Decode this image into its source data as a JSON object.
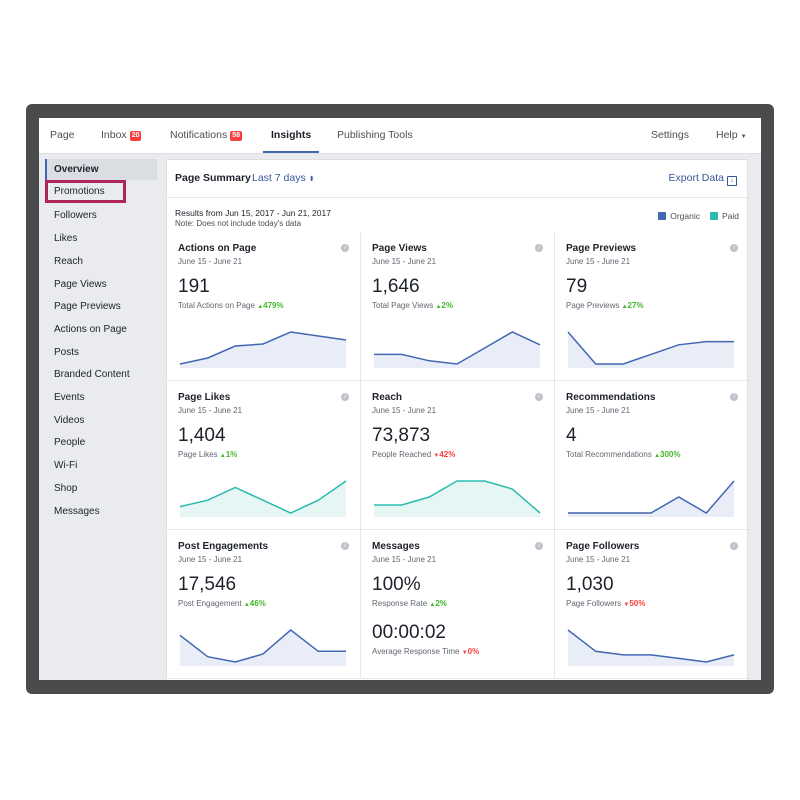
{
  "colors": {
    "accent": "#4267b2",
    "organic": "#4267b2",
    "paid": "#2bbbad",
    "up": "#42b72a",
    "down": "#fa3e3e"
  },
  "topnav": {
    "page": "Page",
    "inbox": "Inbox",
    "inbox_badge": "20",
    "notifications": "Notifications",
    "notifications_badge": "58",
    "insights": "Insights",
    "publishing_tools": "Publishing Tools",
    "settings": "Settings",
    "help": "Help"
  },
  "sidebar": {
    "items": [
      {
        "label": "Overview"
      },
      {
        "label": "Promotions"
      },
      {
        "label": "Followers"
      },
      {
        "label": "Likes"
      },
      {
        "label": "Reach"
      },
      {
        "label": "Page Views"
      },
      {
        "label": "Page Previews"
      },
      {
        "label": "Actions on Page"
      },
      {
        "label": "Posts"
      },
      {
        "label": "Branded Content"
      },
      {
        "label": "Events"
      },
      {
        "label": "Videos"
      },
      {
        "label": "People"
      },
      {
        "label": "Wi-Fi"
      },
      {
        "label": "Shop"
      },
      {
        "label": "Messages"
      }
    ]
  },
  "summary": {
    "title": "Page Summary",
    "range": "Last 7 days",
    "export": "Export Data",
    "results": "Results from Jun 15, 2017 - Jun 21, 2017",
    "note": "Note: Does not include today's data",
    "legend_organic": "Organic",
    "legend_paid": "Paid"
  },
  "cards": [
    {
      "title": "Actions on Page",
      "range": "June 15 - June 21",
      "value": "191",
      "sub": "Total Actions on Page",
      "change": "479%",
      "dir": "up",
      "color": "#4267b2",
      "spark": [
        2,
        5,
        11,
        12,
        18,
        16,
        14
      ]
    },
    {
      "title": "Page Views",
      "range": "June 15 - June 21",
      "value": "1,646",
      "sub": "Total Page Views",
      "change": "2%",
      "dir": "up",
      "color": "#4267b2",
      "spark": [
        12,
        12,
        10,
        9,
        14,
        19,
        15
      ]
    },
    {
      "title": "Page Previews",
      "range": "June 15 - June 21",
      "value": "79",
      "sub": "Page Previews",
      "change": "27%",
      "dir": "up",
      "color": "#4267b2",
      "spark": [
        12,
        2,
        2,
        5,
        8,
        9,
        9
      ]
    },
    {
      "title": "Page Likes",
      "range": "June 15 - June 21",
      "value": "1,404",
      "sub": "Page Likes",
      "change": "1%",
      "dir": "up",
      "color": "#2bbbad",
      "spark": [
        8,
        9,
        11,
        9,
        7,
        9,
        12
      ]
    },
    {
      "title": "Reach",
      "range": "June 15 - June 21",
      "value": "73,873",
      "sub": "People Reached",
      "change": "42%",
      "dir": "down",
      "color": "#2bbbad",
      "spark": [
        10,
        10,
        11,
        13,
        13,
        12,
        9
      ]
    },
    {
      "title": "Recommendations",
      "range": "June 15 - June 21",
      "value": "4",
      "sub": "Total Recommendations",
      "change": "300%",
      "dir": "up",
      "color": "#4267b2",
      "spark": [
        0,
        0,
        0,
        0,
        1,
        0,
        2
      ]
    },
    {
      "title": "Post Engagements",
      "range": "June 15 - June 21",
      "value": "17,546",
      "sub": "Post Engagement",
      "change": "46%",
      "dir": "up",
      "color": "#4267b2",
      "spark": [
        16,
        8,
        6,
        9,
        18,
        10,
        10
      ]
    },
    {
      "title": "Messages",
      "range": "June 15 - June 21",
      "value": "100%",
      "sub": "Response Rate",
      "change": "2%",
      "dir": "up",
      "value2": "00:00:02",
      "sub2": "Average Response Time",
      "change2": "0%",
      "dir2": "down"
    },
    {
      "title": "Page Followers",
      "range": "June 15 - June 21",
      "value": "1,030",
      "sub": "Page Followers",
      "change": "50%",
      "dir": "down",
      "color": "#4267b2",
      "spark": [
        12,
        6,
        5,
        5,
        4,
        3,
        5
      ]
    }
  ]
}
